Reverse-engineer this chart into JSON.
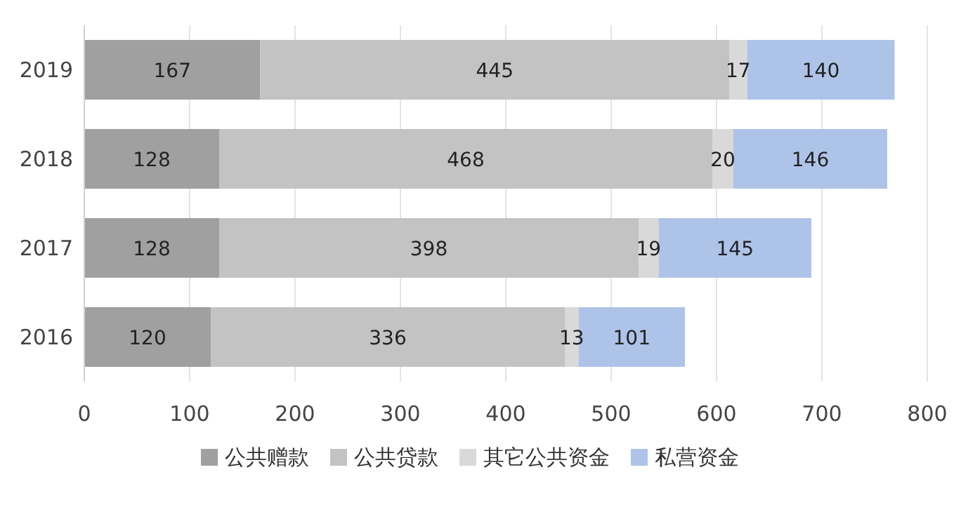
{
  "chart_data": {
    "type": "bar",
    "orientation": "horizontal",
    "stacked": true,
    "categories": [
      "2019",
      "2018",
      "2017",
      "2016"
    ],
    "series": [
      {
        "name": "公共赠款",
        "color": "#a0a0a0",
        "values": [
          167,
          128,
          128,
          120
        ]
      },
      {
        "name": "公共贷款",
        "color": "#c3c3c3",
        "values": [
          445,
          468,
          398,
          336
        ]
      },
      {
        "name": "其它公共资金",
        "color": "#d9d9d9",
        "values": [
          17,
          20,
          19,
          13
        ]
      },
      {
        "name": "私营资金",
        "color": "#aec3e8",
        "values": [
          140,
          146,
          145,
          101
        ]
      }
    ],
    "xlim": [
      0,
      800
    ],
    "xticks": [
      0,
      100,
      200,
      300,
      400,
      500,
      600,
      700,
      800
    ],
    "grid": "x",
    "legend": "bottom",
    "data_labels": true
  }
}
